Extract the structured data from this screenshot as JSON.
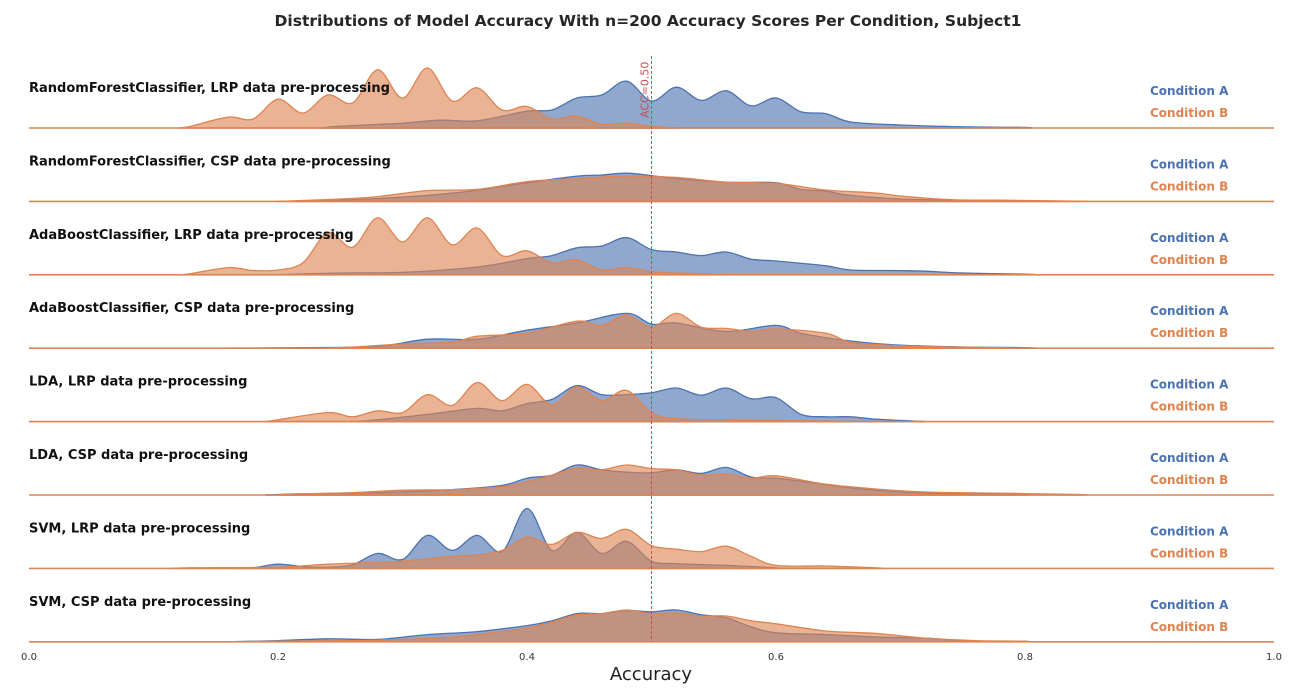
{
  "chart_data": {
    "type": "area",
    "title": "Distributions of Model Accuracy With n=200 Accuracy Scores Per Condition, Subject1",
    "xlabel": "Accuracy",
    "ylabel": "",
    "xlim": [
      0.0,
      1.0
    ],
    "x_ticks": [
      "0.0",
      "0.2",
      "0.4",
      "0.6",
      "0.8",
      "1.0"
    ],
    "grid": false,
    "reference_line": {
      "x": 0.5,
      "label": "ACC=0.50",
      "color": "#c44e52"
    },
    "legend_placement": "right of each row",
    "colors": {
      "condition_a": "#4c72b0",
      "condition_b": "#dd8452"
    },
    "series_names": [
      "Condition A",
      "Condition B"
    ],
    "rows": [
      {
        "label": "RandomForestClassifier, LRP data pre-processing",
        "condition_a": {
          "range": [
            0.235,
            0.805
          ],
          "x": [
            0.25,
            0.3,
            0.33,
            0.36,
            0.4,
            0.42,
            0.44,
            0.46,
            0.48,
            0.5,
            0.52,
            0.54,
            0.56,
            0.58,
            0.6,
            0.62,
            0.64,
            0.66,
            0.7,
            0.75,
            0.8
          ],
          "y": [
            0.03,
            0.08,
            0.13,
            0.12,
            0.28,
            0.3,
            0.5,
            0.55,
            0.78,
            0.45,
            0.68,
            0.46,
            0.62,
            0.37,
            0.5,
            0.27,
            0.24,
            0.1,
            0.05,
            0.02,
            0.01
          ]
        },
        "condition_b": {
          "range": [
            0.12,
            0.52
          ],
          "x": [
            0.13,
            0.16,
            0.18,
            0.2,
            0.22,
            0.24,
            0.26,
            0.28,
            0.3,
            0.32,
            0.34,
            0.36,
            0.38,
            0.4,
            0.42,
            0.44,
            0.46,
            0.48,
            0.5
          ],
          "y": [
            0.03,
            0.18,
            0.15,
            0.48,
            0.25,
            0.55,
            0.42,
            0.97,
            0.5,
            1.0,
            0.45,
            0.67,
            0.3,
            0.36,
            0.15,
            0.2,
            0.06,
            0.08,
            0.03
          ]
        }
      },
      {
        "label": "RandomForestClassifier, CSP data pre-processing",
        "condition_a": {
          "range": [
            0.215,
            0.825
          ],
          "x": [
            0.25,
            0.3,
            0.35,
            0.4,
            0.44,
            0.46,
            0.48,
            0.5,
            0.52,
            0.56,
            0.6,
            0.62,
            0.64,
            0.66,
            0.7,
            0.75,
            0.8
          ],
          "y": [
            0.02,
            0.07,
            0.16,
            0.31,
            0.42,
            0.44,
            0.47,
            0.43,
            0.38,
            0.32,
            0.31,
            0.2,
            0.17,
            0.1,
            0.04,
            0.02,
            0.01
          ]
        },
        "condition_b": {
          "range": [
            0.2,
            0.85
          ],
          "x": [
            0.25,
            0.28,
            0.32,
            0.36,
            0.4,
            0.44,
            0.48,
            0.52,
            0.56,
            0.6,
            0.64,
            0.68,
            0.7,
            0.74,
            0.78,
            0.82
          ],
          "y": [
            0.04,
            0.08,
            0.18,
            0.2,
            0.33,
            0.38,
            0.42,
            0.4,
            0.32,
            0.3,
            0.19,
            0.14,
            0.09,
            0.03,
            0.02,
            0.01
          ]
        }
      },
      {
        "label": "AdaBoostClassifier, LRP data pre-processing",
        "condition_a": {
          "range": [
            0.195,
            0.81
          ],
          "x": [
            0.25,
            0.3,
            0.36,
            0.4,
            0.42,
            0.44,
            0.46,
            0.48,
            0.5,
            0.52,
            0.54,
            0.56,
            0.58,
            0.6,
            0.64,
            0.66,
            0.7,
            0.72,
            0.75,
            0.8
          ],
          "y": [
            0.03,
            0.04,
            0.13,
            0.27,
            0.32,
            0.45,
            0.48,
            0.62,
            0.42,
            0.38,
            0.32,
            0.38,
            0.26,
            0.23,
            0.15,
            0.08,
            0.07,
            0.06,
            0.03,
            0.01
          ]
        },
        "condition_b": {
          "range": [
            0.12,
            0.56
          ],
          "x": [
            0.13,
            0.16,
            0.18,
            0.2,
            0.22,
            0.24,
            0.26,
            0.28,
            0.3,
            0.32,
            0.34,
            0.36,
            0.38,
            0.4,
            0.42,
            0.44,
            0.46,
            0.48,
            0.5,
            0.52,
            0.55
          ],
          "y": [
            0.02,
            0.12,
            0.07,
            0.08,
            0.2,
            0.7,
            0.46,
            0.95,
            0.55,
            0.95,
            0.5,
            0.78,
            0.32,
            0.4,
            0.2,
            0.25,
            0.08,
            0.12,
            0.05,
            0.03,
            0.01
          ]
        }
      },
      {
        "label": "AdaBoostClassifier, CSP data pre-processing",
        "condition_a": {
          "range": [
            0.15,
            0.81
          ],
          "x": [
            0.22,
            0.28,
            0.32,
            0.36,
            0.4,
            0.44,
            0.48,
            0.5,
            0.52,
            0.56,
            0.6,
            0.62,
            0.66,
            0.7,
            0.75,
            0.8
          ],
          "y": [
            0.01,
            0.03,
            0.15,
            0.15,
            0.3,
            0.42,
            0.58,
            0.4,
            0.42,
            0.28,
            0.38,
            0.25,
            0.12,
            0.05,
            0.02,
            0.01
          ]
        },
        "condition_b": {
          "range": [
            0.235,
            0.79
          ],
          "x": [
            0.26,
            0.3,
            0.34,
            0.36,
            0.4,
            0.44,
            0.46,
            0.48,
            0.5,
            0.52,
            0.54,
            0.56,
            0.58,
            0.6,
            0.64,
            0.66,
            0.7,
            0.74,
            0.78
          ],
          "y": [
            0.02,
            0.07,
            0.1,
            0.2,
            0.25,
            0.45,
            0.38,
            0.55,
            0.35,
            0.58,
            0.35,
            0.33,
            0.28,
            0.32,
            0.25,
            0.1,
            0.04,
            0.02,
            0.01
          ]
        }
      },
      {
        "label": "LDA, LRP data pre-processing",
        "condition_a": {
          "range": [
            0.26,
            0.72
          ],
          "x": [
            0.28,
            0.32,
            0.36,
            0.38,
            0.4,
            0.42,
            0.44,
            0.46,
            0.48,
            0.5,
            0.52,
            0.54,
            0.56,
            0.58,
            0.6,
            0.62,
            0.64,
            0.66,
            0.68,
            0.71
          ],
          "y": [
            0.03,
            0.12,
            0.22,
            0.18,
            0.3,
            0.37,
            0.6,
            0.45,
            0.45,
            0.48,
            0.56,
            0.44,
            0.56,
            0.38,
            0.4,
            0.12,
            0.08,
            0.08,
            0.04,
            0.01
          ]
        },
        "condition_b": {
          "range": [
            0.19,
            0.65
          ],
          "x": [
            0.2,
            0.24,
            0.26,
            0.28,
            0.3,
            0.32,
            0.34,
            0.36,
            0.38,
            0.4,
            0.42,
            0.44,
            0.46,
            0.48,
            0.5,
            0.52,
            0.56,
            0.6,
            0.64
          ],
          "y": [
            0.03,
            0.15,
            0.08,
            0.18,
            0.15,
            0.45,
            0.27,
            0.65,
            0.35,
            0.62,
            0.28,
            0.58,
            0.35,
            0.52,
            0.15,
            0.05,
            0.03,
            0.02,
            0.01
          ]
        }
      },
      {
        "label": "LDA, CSP data pre-processing",
        "condition_a": {
          "range": [
            0.19,
            0.8
          ],
          "x": [
            0.22,
            0.28,
            0.34,
            0.38,
            0.4,
            0.42,
            0.44,
            0.46,
            0.48,
            0.5,
            0.52,
            0.54,
            0.56,
            0.58,
            0.6,
            0.62,
            0.66,
            0.7,
            0.75,
            0.8
          ],
          "y": [
            0.02,
            0.04,
            0.09,
            0.16,
            0.28,
            0.33,
            0.5,
            0.42,
            0.38,
            0.37,
            0.42,
            0.36,
            0.46,
            0.3,
            0.28,
            0.23,
            0.12,
            0.05,
            0.02,
            0.01
          ]
        },
        "condition_b": {
          "range": [
            0.2,
            0.85
          ],
          "x": [
            0.22,
            0.26,
            0.3,
            0.34,
            0.38,
            0.4,
            0.42,
            0.44,
            0.46,
            0.48,
            0.5,
            0.52,
            0.54,
            0.56,
            0.58,
            0.6,
            0.64,
            0.68,
            0.72,
            0.78,
            0.84
          ],
          "y": [
            0.02,
            0.04,
            0.08,
            0.09,
            0.14,
            0.22,
            0.33,
            0.45,
            0.42,
            0.5,
            0.44,
            0.42,
            0.33,
            0.35,
            0.28,
            0.32,
            0.18,
            0.1,
            0.05,
            0.03,
            0.01
          ]
        }
      },
      {
        "label": "SVM, LRP data pre-processing",
        "condition_a": {
          "range": [
            0.165,
            0.6
          ],
          "x": [
            0.18,
            0.2,
            0.22,
            0.24,
            0.26,
            0.28,
            0.3,
            0.32,
            0.34,
            0.36,
            0.38,
            0.4,
            0.42,
            0.44,
            0.46,
            0.48,
            0.5,
            0.52,
            0.56,
            0.6
          ],
          "y": [
            0.01,
            0.07,
            0.03,
            0.02,
            0.06,
            0.25,
            0.15,
            0.55,
            0.3,
            0.55,
            0.28,
            1.0,
            0.3,
            0.6,
            0.25,
            0.45,
            0.12,
            0.08,
            0.05,
            0.01
          ]
        },
        "condition_b": {
          "range": [
            0.115,
            0.685
          ],
          "x": [
            0.13,
            0.2,
            0.24,
            0.28,
            0.3,
            0.34,
            0.36,
            0.38,
            0.4,
            0.42,
            0.44,
            0.46,
            0.48,
            0.5,
            0.52,
            0.54,
            0.56,
            0.58,
            0.6,
            0.64,
            0.68
          ],
          "y": [
            0.01,
            0.02,
            0.07,
            0.1,
            0.12,
            0.2,
            0.22,
            0.3,
            0.52,
            0.4,
            0.6,
            0.5,
            0.65,
            0.38,
            0.32,
            0.28,
            0.37,
            0.2,
            0.05,
            0.04,
            0.01
          ]
        }
      },
      {
        "label": "SVM, CSP data pre-processing",
        "condition_a": {
          "range": [
            0.16,
            0.75
          ],
          "x": [
            0.2,
            0.24,
            0.28,
            0.32,
            0.36,
            0.4,
            0.42,
            0.44,
            0.46,
            0.48,
            0.5,
            0.52,
            0.54,
            0.56,
            0.58,
            0.6,
            0.64,
            0.68,
            0.72,
            0.75
          ],
          "y": [
            0.02,
            0.05,
            0.04,
            0.12,
            0.17,
            0.27,
            0.35,
            0.47,
            0.47,
            0.52,
            0.5,
            0.53,
            0.45,
            0.4,
            0.25,
            0.15,
            0.12,
            0.08,
            0.06,
            0.01
          ]
        },
        "condition_b": {
          "range": [
            0.16,
            0.8
          ],
          "x": [
            0.2,
            0.26,
            0.3,
            0.34,
            0.38,
            0.4,
            0.42,
            0.44,
            0.46,
            0.48,
            0.5,
            0.52,
            0.54,
            0.56,
            0.58,
            0.6,
            0.64,
            0.68,
            0.72,
            0.76,
            0.8
          ],
          "y": [
            0.01,
            0.02,
            0.04,
            0.08,
            0.17,
            0.23,
            0.33,
            0.45,
            0.47,
            0.53,
            0.47,
            0.48,
            0.43,
            0.43,
            0.35,
            0.3,
            0.18,
            0.14,
            0.06,
            0.02,
            0.01
          ]
        }
      }
    ]
  }
}
